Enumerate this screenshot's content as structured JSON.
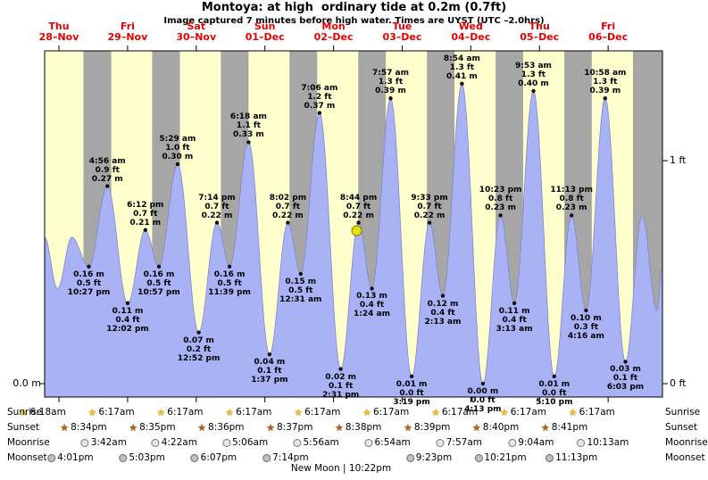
{
  "title": "Montoya: at high  ordinary tide at 0.2m (0.7ft)",
  "subtitle": "Image captured 7 minutes before high water. Times are UYST (UTC –2.0hrs)",
  "axis": {
    "left_m": "0.0 m",
    "right_top": "1 ft",
    "right_bottom": "0 ft"
  },
  "colors": {
    "day_band": "#ffffcd",
    "night_band": "#a6a6a6",
    "tide_fill": "#a9b2f4",
    "tide_edge": "#8088d0",
    "day_label": "#e60000",
    "current_marker": "#e8e000",
    "annotation": "#000000"
  },
  "days": [
    {
      "name": "Thu",
      "date": "28–Nov"
    },
    {
      "name": "Fri",
      "date": "29–Nov"
    },
    {
      "name": "Sat",
      "date": "30–Nov"
    },
    {
      "name": "Sun",
      "date": "01–Dec"
    },
    {
      "name": "Mon",
      "date": "02–Dec"
    },
    {
      "name": "Tue",
      "date": "03–Dec"
    },
    {
      "name": "Wed",
      "date": "04–Dec"
    },
    {
      "name": "Thu",
      "date": "05–Dec"
    },
    {
      "name": "Fri",
      "date": "06–Dec"
    }
  ],
  "chart_data": {
    "type": "area",
    "title": "Montoya tide height",
    "x_unit": "hours from Thu 28-Nov 00:00",
    "x_range_h": [
      7,
      223
    ],
    "y_unit": "m",
    "ylim_m": [
      0,
      0.47
    ],
    "grid": false,
    "night_bands_h": [
      [
        20.567,
        30.283
      ],
      [
        44.583,
        54.283
      ],
      [
        68.6,
        78.283
      ],
      [
        92.617,
        102.283
      ],
      [
        116.633,
        126.283
      ],
      [
        140.65,
        150.283
      ],
      [
        164.667,
        174.283
      ],
      [
        188.683,
        198.283
      ],
      [
        212.683,
        223
      ]
    ],
    "tide_events": [
      {
        "day": 0,
        "time": "7:00 am",
        "m": 0.2,
        "edge": true
      },
      {
        "day": 0,
        "time": "11:30 am",
        "m": 0.13,
        "edge": true
      },
      {
        "day": 0,
        "time": "4:30 pm",
        "m": 0.2,
        "edge": true
      },
      {
        "day": 0,
        "time": "10:27 pm",
        "m": 0.16,
        "ft": 0.5,
        "type": "low"
      },
      {
        "day": 1,
        "time": "4:56 am",
        "m": 0.27,
        "ft": 0.9,
        "type": "high"
      },
      {
        "day": 1,
        "time": "12:02 pm",
        "m": 0.11,
        "ft": 0.4,
        "type": "low"
      },
      {
        "day": 1,
        "time": "6:12 pm",
        "m": 0.21,
        "ft": 0.7,
        "type": "high"
      },
      {
        "day": 1,
        "time": "10:57 pm",
        "m": 0.16,
        "ft": 0.5,
        "type": "low"
      },
      {
        "day": 2,
        "time": "5:29 am",
        "m": 0.3,
        "ft": 1.0,
        "type": "high"
      },
      {
        "day": 2,
        "time": "12:52 pm",
        "m": 0.07,
        "ft": 0.2,
        "type": "low"
      },
      {
        "day": 2,
        "time": "7:14 pm",
        "m": 0.22,
        "ft": 0.7,
        "type": "high"
      },
      {
        "day": 2,
        "time": "11:39 pm",
        "m": 0.16,
        "ft": 0.5,
        "type": "low"
      },
      {
        "day": 3,
        "time": "6:18 am",
        "m": 0.33,
        "ft": 1.1,
        "type": "high"
      },
      {
        "day": 3,
        "time": "1:37 pm",
        "m": 0.04,
        "ft": 0.1,
        "type": "low"
      },
      {
        "day": 3,
        "time": "8:02 pm",
        "m": 0.22,
        "ft": 0.7,
        "type": "high"
      },
      {
        "day": 4,
        "time": "12:31 am",
        "m": 0.15,
        "ft": 0.5,
        "type": "low"
      },
      {
        "day": 4,
        "time": "7:06 am",
        "m": 0.37,
        "ft": 1.2,
        "type": "high"
      },
      {
        "day": 4,
        "time": "2:31 pm",
        "m": 0.02,
        "ft": 0.1,
        "type": "low"
      },
      {
        "day": 4,
        "time": "8:44 pm",
        "m": 0.22,
        "ft": 0.7,
        "type": "high",
        "current": true
      },
      {
        "day": 5,
        "time": "1:24 am",
        "m": 0.13,
        "ft": 0.4,
        "type": "low"
      },
      {
        "day": 5,
        "time": "7:57 am",
        "m": 0.39,
        "ft": 1.3,
        "type": "high"
      },
      {
        "day": 5,
        "time": "3:19 pm",
        "m": 0.01,
        "ft": 0.0,
        "type": "low"
      },
      {
        "day": 5,
        "time": "9:33 pm",
        "m": 0.22,
        "ft": 0.7,
        "type": "high"
      },
      {
        "day": 6,
        "time": "2:13 am",
        "m": 0.12,
        "ft": 0.4,
        "type": "low"
      },
      {
        "day": 6,
        "time": "8:54 am",
        "m": 0.41,
        "ft": 1.3,
        "type": "high"
      },
      {
        "day": 6,
        "time": "4:13 pm",
        "m": 0.0,
        "ft": 0.0,
        "type": "low"
      },
      {
        "day": 6,
        "time": "10:23 pm",
        "m": 0.23,
        "ft": 0.8,
        "type": "high"
      },
      {
        "day": 7,
        "time": "3:13 am",
        "m": 0.11,
        "ft": 0.4,
        "type": "low"
      },
      {
        "day": 7,
        "time": "9:53 am",
        "m": 0.4,
        "ft": 1.3,
        "type": "high"
      },
      {
        "day": 7,
        "time": "5:10 pm",
        "m": 0.01,
        "ft": 0.0,
        "type": "low"
      },
      {
        "day": 7,
        "time": "11:13 pm",
        "m": 0.23,
        "ft": 0.8,
        "type": "high"
      },
      {
        "day": 8,
        "time": "4:16 am",
        "m": 0.1,
        "ft": 0.3,
        "type": "low"
      },
      {
        "day": 8,
        "time": "10:58 am",
        "m": 0.39,
        "ft": 1.3,
        "type": "high"
      },
      {
        "day": 8,
        "time": "6:03 pm",
        "m": 0.03,
        "ft": 0.1,
        "type": "low"
      },
      {
        "day": 8,
        "time": "11:55 pm",
        "m": 0.23,
        "edge": true
      },
      {
        "day": 9,
        "time": "5:00 am",
        "m": 0.1,
        "edge": true
      },
      {
        "day": 9,
        "time": "7:00 am",
        "m": 0.16,
        "edge": true
      }
    ],
    "current_position": {
      "day": 4,
      "time": "8:44 pm",
      "m": 0.22
    }
  },
  "astro": {
    "rows": [
      {
        "label": "Sunrise",
        "icon": "sunrise-star-icon",
        "entries": [
          {
            "day": 0,
            "time": "6:18am"
          },
          {
            "day": 1,
            "time": "6:17am"
          },
          {
            "day": 2,
            "time": "6:17am"
          },
          {
            "day": 3,
            "time": "6:17am"
          },
          {
            "day": 4,
            "time": "6:17am"
          },
          {
            "day": 5,
            "time": "6:17am"
          },
          {
            "day": 6,
            "time": "6:17am"
          },
          {
            "day": 7,
            "time": "6:17am"
          },
          {
            "day": 8,
            "time": "6:17am"
          }
        ]
      },
      {
        "label": "Sunset",
        "icon": "sunset-star-icon",
        "entries": [
          {
            "day": 0,
            "time": "8:34pm"
          },
          {
            "day": 1,
            "time": "8:35pm"
          },
          {
            "day": 2,
            "time": "8:36pm"
          },
          {
            "day": 3,
            "time": "8:37pm"
          },
          {
            "day": 4,
            "time": "8:38pm"
          },
          {
            "day": 5,
            "time": "8:39pm"
          },
          {
            "day": 6,
            "time": "8:40pm"
          },
          {
            "day": 7,
            "time": "8:41pm"
          }
        ]
      },
      {
        "label": "Moonrise",
        "icon": "moonrise-icon",
        "entries": [
          {
            "day": 1,
            "time": "3:42am"
          },
          {
            "day": 2,
            "time": "4:22am"
          },
          {
            "day": 3,
            "time": "5:06am"
          },
          {
            "day": 4,
            "time": "5:56am"
          },
          {
            "day": 5,
            "time": "6:54am"
          },
          {
            "day": 6,
            "time": "7:57am"
          },
          {
            "day": 7,
            "time": "9:04am"
          },
          {
            "day": 8,
            "time": "10:13am"
          }
        ]
      },
      {
        "label": "Moonset",
        "icon": "moonset-icon",
        "entries": [
          {
            "day": 0,
            "time": "4:01pm"
          },
          {
            "day": 1,
            "time": "5:03pm"
          },
          {
            "day": 2,
            "time": "6:07pm"
          },
          {
            "day": 3,
            "time": "7:14pm"
          },
          {
            "day": 5,
            "time": "9:23pm"
          },
          {
            "day": 6,
            "time": "10:21pm"
          },
          {
            "day": 7,
            "time": "11:13pm"
          }
        ]
      }
    ],
    "new_moon": "New Moon | 10:22pm"
  }
}
